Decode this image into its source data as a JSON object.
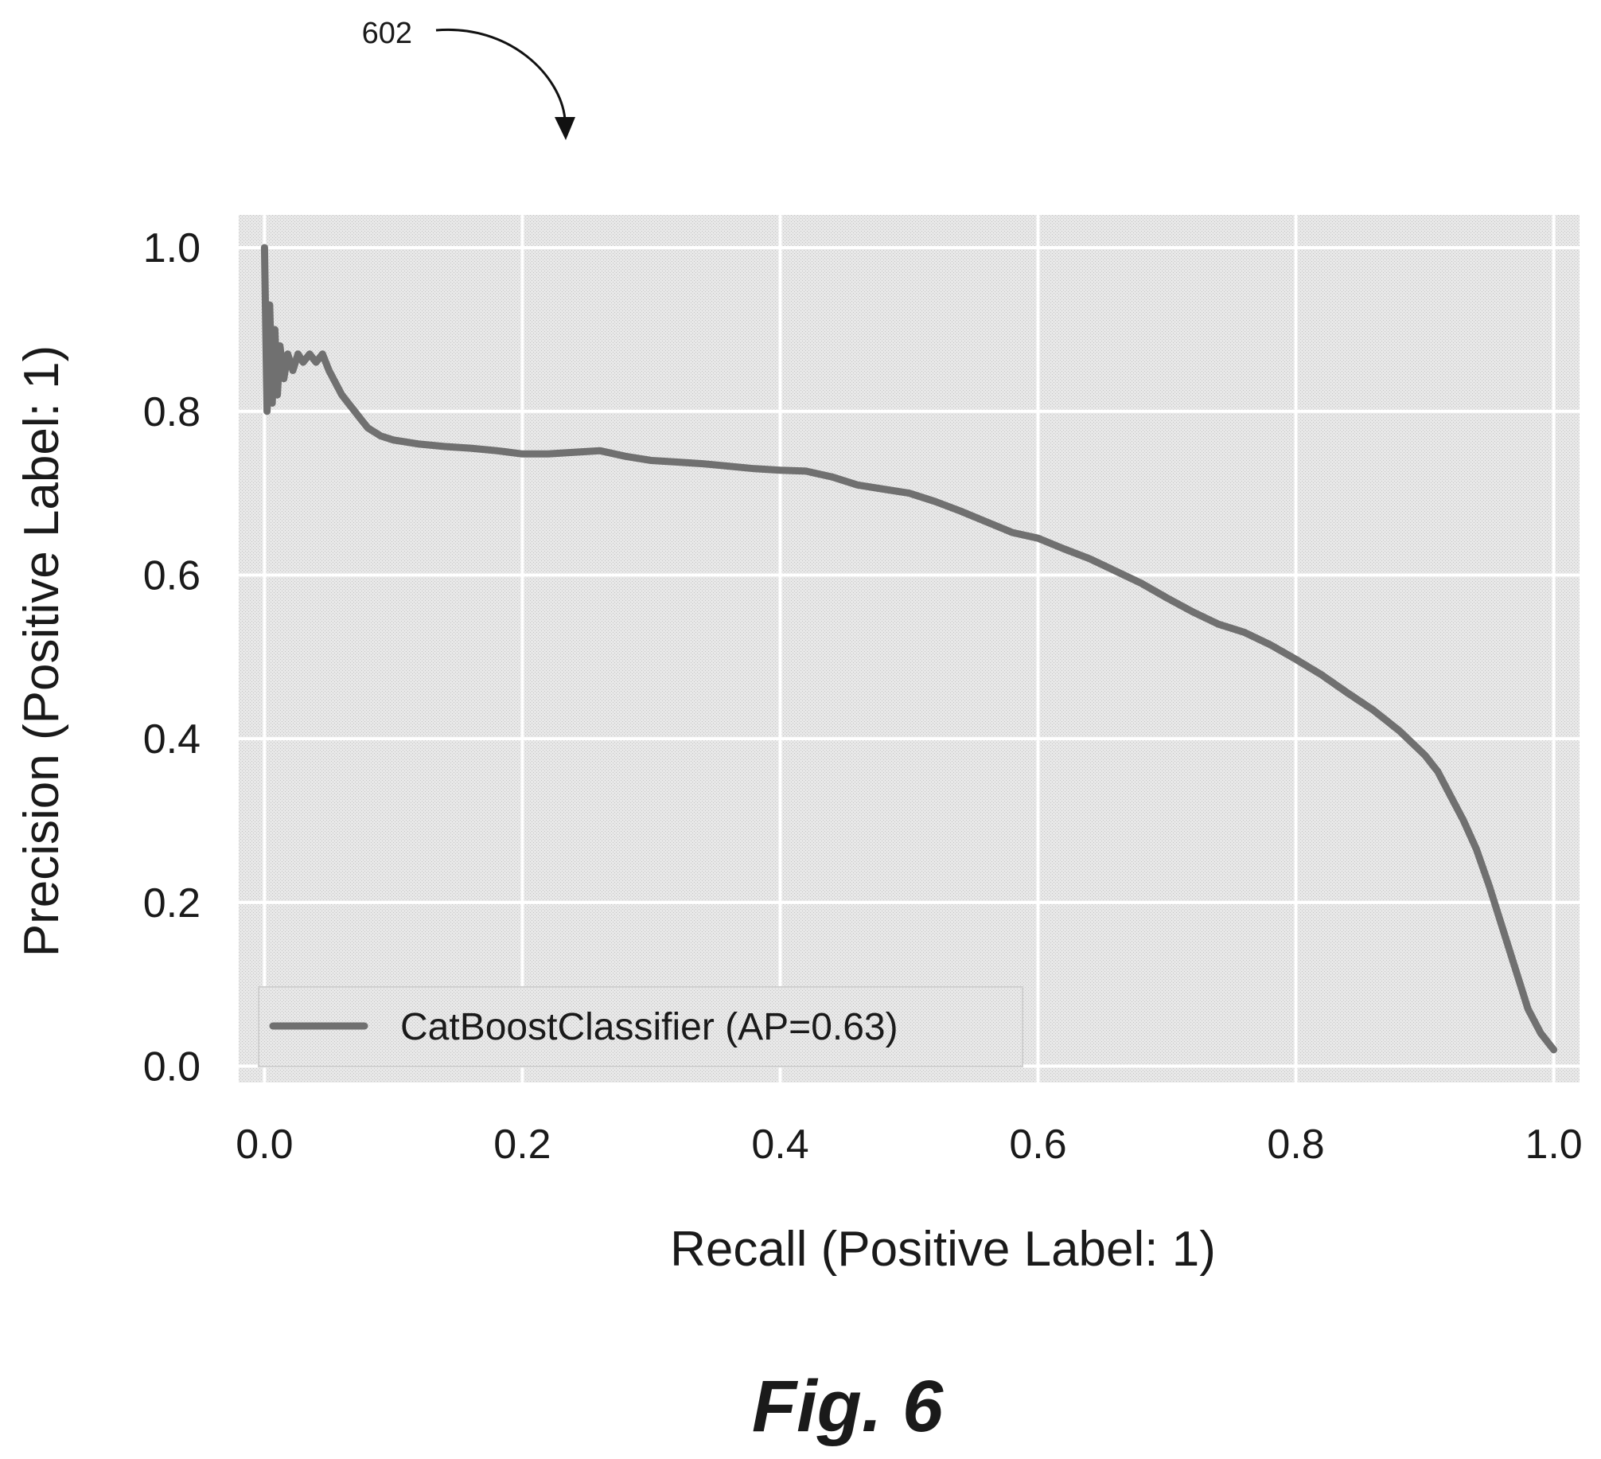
{
  "reference_label": "602",
  "figure_caption": "Fig. 6",
  "chart_data": {
    "type": "line",
    "xlabel": "Recall (Positive Label: 1)",
    "ylabel": "Precision (Positive Label: 1)",
    "xlim": [
      -0.02,
      1.02
    ],
    "ylim": [
      -0.02,
      1.04
    ],
    "xticks": [
      "0.0",
      "0.2",
      "0.4",
      "0.6",
      "0.8",
      "1.0"
    ],
    "yticks": [
      "0.0",
      "0.2",
      "0.4",
      "0.6",
      "0.8",
      "1.0"
    ],
    "grid": true,
    "legend_position": "lower left",
    "series": [
      {
        "name": "CatBoostClassifier (AP=0.63)",
        "color": "#707070",
        "x": [
          0.0,
          0.002,
          0.004,
          0.006,
          0.008,
          0.01,
          0.012,
          0.015,
          0.018,
          0.022,
          0.026,
          0.03,
          0.035,
          0.04,
          0.045,
          0.05,
          0.06,
          0.07,
          0.08,
          0.09,
          0.1,
          0.12,
          0.14,
          0.16,
          0.18,
          0.2,
          0.22,
          0.24,
          0.26,
          0.28,
          0.3,
          0.32,
          0.34,
          0.36,
          0.38,
          0.4,
          0.42,
          0.44,
          0.46,
          0.48,
          0.5,
          0.52,
          0.54,
          0.56,
          0.58,
          0.6,
          0.62,
          0.64,
          0.66,
          0.68,
          0.7,
          0.72,
          0.74,
          0.76,
          0.78,
          0.8,
          0.82,
          0.84,
          0.86,
          0.88,
          0.9,
          0.91,
          0.92,
          0.93,
          0.94,
          0.95,
          0.96,
          0.97,
          0.98,
          0.99,
          1.0
        ],
        "y": [
          1.0,
          0.8,
          0.93,
          0.81,
          0.9,
          0.82,
          0.88,
          0.84,
          0.87,
          0.85,
          0.87,
          0.86,
          0.87,
          0.86,
          0.87,
          0.85,
          0.82,
          0.8,
          0.78,
          0.77,
          0.765,
          0.76,
          0.757,
          0.755,
          0.752,
          0.748,
          0.748,
          0.75,
          0.752,
          0.745,
          0.74,
          0.738,
          0.736,
          0.733,
          0.73,
          0.728,
          0.727,
          0.72,
          0.71,
          0.705,
          0.7,
          0.69,
          0.678,
          0.665,
          0.652,
          0.645,
          0.632,
          0.62,
          0.605,
          0.59,
          0.572,
          0.555,
          0.54,
          0.53,
          0.515,
          0.497,
          0.478,
          0.456,
          0.435,
          0.41,
          0.38,
          0.36,
          0.33,
          0.3,
          0.265,
          0.22,
          0.17,
          0.12,
          0.07,
          0.04,
          0.02
        ]
      }
    ]
  }
}
